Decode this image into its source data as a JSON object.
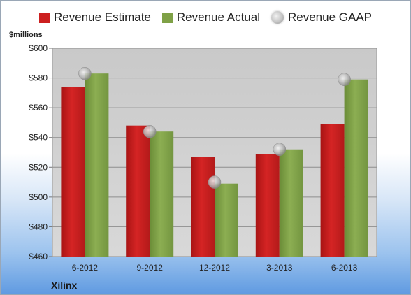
{
  "legend": [
    {
      "label": "Revenue Estimate",
      "color": "#cc1f1f",
      "shape": "square"
    },
    {
      "label": "Revenue Actual",
      "color": "#7fa146",
      "shape": "square"
    },
    {
      "label": "Revenue GAAP",
      "color": "#b5b5b5",
      "shape": "circle"
    }
  ],
  "unit_label": "$millions",
  "company": "Xilinx",
  "chart_data": {
    "type": "bar",
    "categories": [
      "6-2012",
      "9-2012",
      "12-2012",
      "3-2013",
      "6-2013"
    ],
    "series": [
      {
        "name": "Revenue Estimate",
        "values": [
          574,
          548,
          527,
          529,
          549
        ],
        "color": "#cc1f1f"
      },
      {
        "name": "Revenue Actual",
        "values": [
          583,
          544,
          509,
          532,
          579
        ],
        "color": "#7fa146"
      },
      {
        "name": "Revenue GAAP",
        "values": [
          583,
          544,
          510,
          532,
          579
        ],
        "marker": "circle",
        "color": "#b5b5b5"
      }
    ],
    "ylim": [
      460,
      600
    ],
    "yticks": [
      "$460",
      "$480",
      "$500",
      "$520",
      "$540",
      "$560",
      "$580",
      "$600"
    ],
    "grid": true,
    "legend_position": "top"
  }
}
